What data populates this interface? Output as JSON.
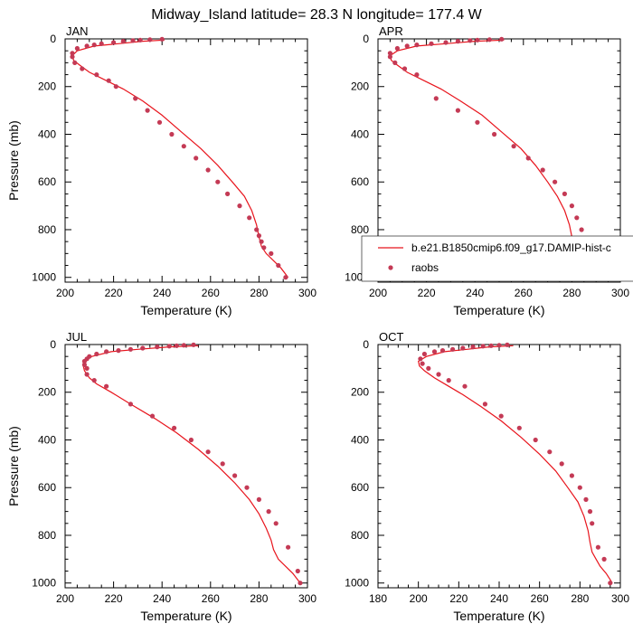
{
  "title": "Midway_Island  latitude= 28.3 N longitude= 177.4 W",
  "legend": {
    "model_label": "b.e21.B1850cmip6.f09_g17.DAMIP-hist-c",
    "obs_label": "raobs",
    "model_color": "#e8141c",
    "obs_color": "#c43a55"
  },
  "chart_data": [
    {
      "type": "line",
      "panel": "JAN",
      "xlabel": "Temperature (K)",
      "ylabel": "Pressure (mb)",
      "xlim": [
        200,
        300
      ],
      "ylim": [
        1020,
        0
      ],
      "xticks": [
        200,
        220,
        240,
        260,
        280,
        300
      ],
      "yticks": [
        0,
        200,
        400,
        600,
        800,
        1000
      ],
      "series": [
        {
          "name": "b.e21.B1850cmip6.f09_g17.DAMIP-hist-c",
          "kind": "line",
          "x": [
            241,
            232,
            222,
            212,
            205,
            203,
            203.5,
            206,
            210,
            216,
            224,
            232,
            240,
            248,
            256,
            263,
            269,
            274,
            277,
            279,
            280,
            281,
            283,
            286,
            289,
            292
          ],
          "y": [
            5,
            10,
            20,
            30,
            50,
            70,
            90,
            110,
            140,
            170,
            210,
            260,
            320,
            390,
            460,
            530,
            600,
            660,
            720,
            780,
            830,
            870,
            900,
            930,
            960,
            1000
          ]
        },
        {
          "name": "raobs",
          "kind": "scatter",
          "x": [
            240,
            235,
            231,
            228,
            224,
            220,
            215,
            212,
            209,
            205,
            203,
            203,
            204,
            207,
            213,
            218,
            221,
            229,
            234,
            239,
            244,
            249,
            254,
            259,
            263,
            267,
            272,
            276,
            279,
            280,
            281,
            282,
            285,
            288,
            291
          ],
          "y": [
            1,
            3,
            5,
            7,
            10,
            15,
            20,
            25,
            30,
            40,
            60,
            75,
            100,
            125,
            150,
            175,
            200,
            250,
            300,
            350,
            400,
            450,
            500,
            550,
            600,
            650,
            700,
            750,
            800,
            825,
            850,
            875,
            900,
            950,
            1000
          ]
        }
      ]
    },
    {
      "type": "line",
      "panel": "APR",
      "xlabel": "Temperature (K)",
      "ylabel": "",
      "xlim": [
        200,
        300
      ],
      "ylim": [
        1020,
        0
      ],
      "xticks": [
        200,
        220,
        240,
        260,
        280,
        300
      ],
      "yticks": [
        0,
        200,
        400,
        600,
        800,
        1000
      ],
      "series": [
        {
          "name": "b.e21.B1850cmip6.f09_g17.DAMIP-hist-c",
          "kind": "line",
          "x": [
            252,
            240,
            228,
            216,
            208,
            205,
            205.5,
            208,
            212,
            218,
            226,
            234,
            243,
            251,
            259,
            265,
            270,
            274,
            277,
            279,
            280,
            281,
            284,
            287,
            290,
            292
          ],
          "y": [
            5,
            10,
            20,
            30,
            50,
            70,
            90,
            110,
            140,
            170,
            210,
            260,
            320,
            390,
            460,
            530,
            600,
            660,
            720,
            780,
            830,
            870,
            900,
            930,
            960,
            1000
          ]
        },
        {
          "name": "raobs",
          "kind": "scatter",
          "x": [
            251,
            246,
            241,
            238,
            233,
            228,
            222,
            216,
            212,
            208,
            205,
            205,
            207,
            211,
            216,
            224,
            233,
            241,
            248,
            256,
            262,
            268,
            273,
            277,
            280,
            282,
            284,
            287,
            289,
            291
          ],
          "y": [
            1,
            3,
            5,
            7,
            10,
            15,
            20,
            25,
            30,
            40,
            60,
            75,
            100,
            125,
            150,
            250,
            300,
            350,
            400,
            450,
            500,
            550,
            600,
            650,
            700,
            750,
            800,
            850,
            900,
            1000
          ]
        }
      ]
    },
    {
      "type": "line",
      "panel": "JUL",
      "xlabel": "Temperature (K)",
      "ylabel": "Pressure (mb)",
      "xlim": [
        200,
        300
      ],
      "ylim": [
        1020,
        0
      ],
      "xticks": [
        200,
        220,
        240,
        260,
        280,
        300
      ],
      "yticks": [
        0,
        200,
        400,
        600,
        800,
        1000
      ],
      "series": [
        {
          "name": "b.e21.B1850cmip6.f09_g17.DAMIP-hist-c",
          "kind": "line",
          "x": [
            255,
            243,
            230,
            219,
            211,
            208,
            207.5,
            208,
            210,
            213,
            219,
            227,
            237,
            246,
            255,
            263,
            270,
            276,
            280,
            283,
            285,
            286,
            288,
            291,
            294,
            297
          ],
          "y": [
            5,
            10,
            20,
            30,
            50,
            70,
            90,
            110,
            140,
            165,
            200,
            250,
            310,
            370,
            440,
            510,
            580,
            650,
            710,
            770,
            820,
            860,
            900,
            930,
            960,
            1000
          ]
        },
        {
          "name": "raobs",
          "kind": "scatter",
          "x": [
            253,
            249,
            246,
            243,
            238,
            232,
            227,
            222,
            217,
            213,
            210,
            209,
            208,
            208,
            209,
            209,
            212,
            217,
            227,
            236,
            245,
            252,
            259,
            265,
            270,
            275,
            280,
            284,
            287,
            292,
            296,
            297
          ],
          "y": [
            1,
            3,
            5,
            7,
            10,
            15,
            20,
            25,
            30,
            40,
            50,
            60,
            70,
            85,
            100,
            125,
            150,
            175,
            250,
            300,
            350,
            400,
            450,
            500,
            550,
            600,
            650,
            700,
            750,
            850,
            950,
            1000
          ]
        }
      ]
    },
    {
      "type": "line",
      "panel": "OCT",
      "xlabel": "Temperature (K)",
      "ylabel": "",
      "xlim": [
        180,
        300
      ],
      "ylim": [
        1020,
        0
      ],
      "xticks": [
        180,
        200,
        220,
        240,
        260,
        280,
        300
      ],
      "yticks": [
        0,
        200,
        400,
        600,
        800,
        1000
      ],
      "series": [
        {
          "name": "b.e21.B1850cmip6.f09_g17.DAMIP-hist-c",
          "kind": "line",
          "x": [
            247,
            235,
            224,
            213,
            204,
            200,
            200.5,
            203,
            208,
            214,
            222,
            231,
            241,
            251,
            260,
            268,
            274,
            279,
            282,
            284,
            285,
            286,
            288,
            290,
            293,
            296
          ],
          "y": [
            5,
            10,
            20,
            30,
            50,
            70,
            90,
            110,
            140,
            170,
            210,
            260,
            320,
            390,
            460,
            530,
            600,
            660,
            720,
            780,
            830,
            870,
            900,
            930,
            960,
            1000
          ]
        },
        {
          "name": "raobs",
          "kind": "scatter",
          "x": [
            244,
            240,
            236,
            232,
            227,
            222,
            217,
            212,
            208,
            203,
            201,
            202,
            205,
            210,
            215,
            223,
            233,
            241,
            250,
            258,
            265,
            271,
            276,
            280,
            283,
            285,
            286,
            289,
            292,
            295
          ],
          "y": [
            1,
            3,
            5,
            7,
            10,
            15,
            20,
            25,
            30,
            40,
            60,
            80,
            100,
            125,
            150,
            175,
            250,
            300,
            350,
            400,
            450,
            500,
            550,
            600,
            650,
            700,
            750,
            850,
            900,
            1000
          ]
        }
      ]
    }
  ]
}
